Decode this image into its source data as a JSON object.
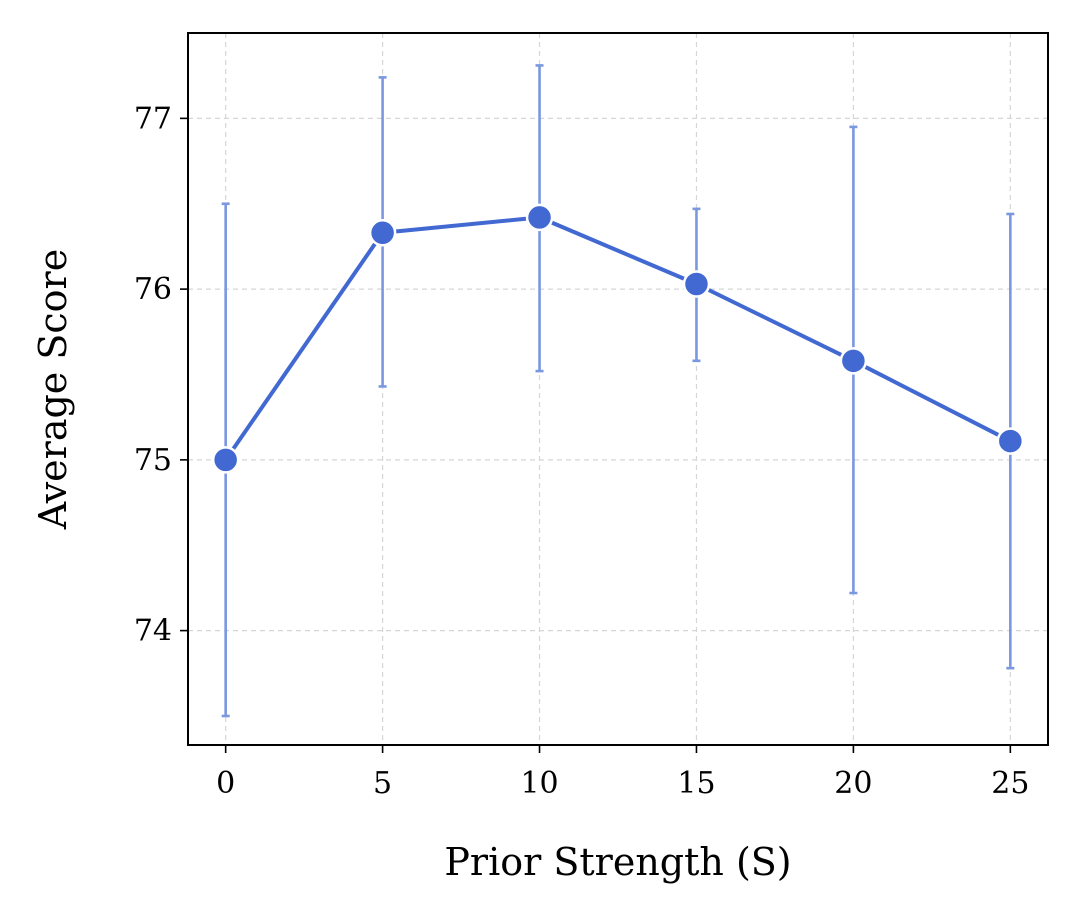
{
  "chart_data": {
    "type": "line",
    "title": "",
    "xlabel": "Prior Strength (S)",
    "ylabel": "Average Score",
    "x": [
      0,
      5,
      10,
      15,
      20,
      25
    ],
    "series": [
      {
        "values": [
          75.0,
          76.33,
          76.42,
          76.03,
          75.58,
          75.11
        ],
        "error_low": [
          73.5,
          75.43,
          75.52,
          75.58,
          74.22,
          73.78
        ],
        "error_high": [
          76.5,
          77.24,
          77.31,
          76.47,
          76.95,
          76.44
        ],
        "color": "#4169d1",
        "errorbar_color": "#7a97e0",
        "marker": "circle"
      }
    ],
    "xlim": [
      -1.2,
      26.2
    ],
    "ylim": [
      73.33,
      77.5
    ],
    "xticks": [
      0,
      5,
      10,
      15,
      20,
      25
    ],
    "yticks": [
      74,
      75,
      76,
      77
    ],
    "xtick_labels": [
      "0",
      "5",
      "10",
      "15",
      "20",
      "25"
    ],
    "ytick_labels": [
      "74",
      "75",
      "76",
      "77"
    ],
    "grid": true,
    "grid_style": "dashed",
    "legend": "none"
  }
}
